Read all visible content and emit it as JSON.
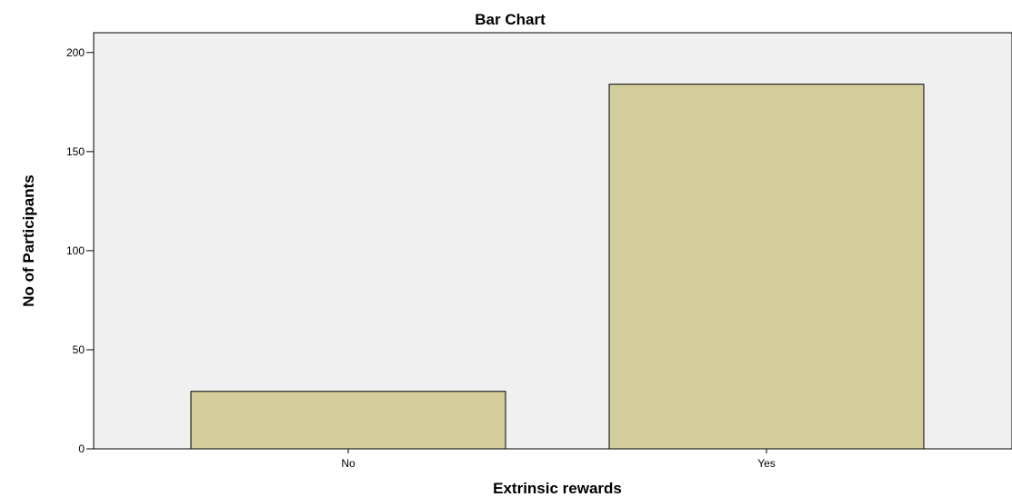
{
  "chart_data": {
    "type": "bar",
    "title": "Bar Chart",
    "xlabel": "Extrinsic rewards",
    "ylabel": "No of Participants",
    "categories": [
      "No",
      "Yes"
    ],
    "values": [
      29,
      184
    ],
    "ylim": [
      0,
      210
    ],
    "yticks": [
      0,
      50,
      100,
      150,
      200
    ],
    "ytick_labels": [
      "0",
      "50",
      "100",
      "150",
      "200"
    ],
    "grid": false,
    "legend": "none",
    "colors": {
      "bar_fill": "#d3ce9b",
      "bar_stroke": "#000000",
      "plot_background": "#f0f0f0",
      "axis": "#000000"
    }
  }
}
